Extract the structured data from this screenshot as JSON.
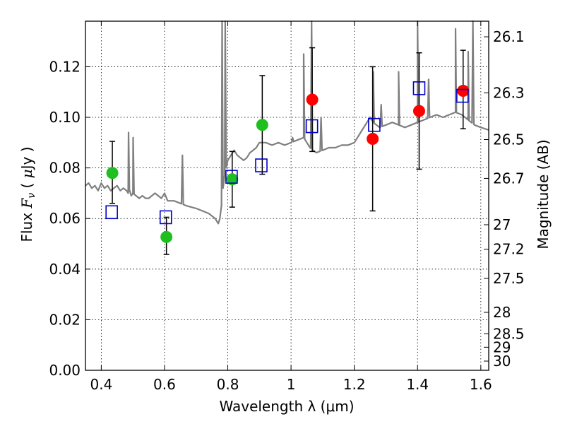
{
  "chart_data": {
    "type": "scatter",
    "xlabel": "Wavelength  λ (μm)",
    "ylabel": "Flux  F_ν  ( μJy )",
    "ylabel_parts": [
      "Flux  ",
      "F",
      "ν",
      "  ( ",
      "μ",
      "Jy )"
    ],
    "y2label": "Magnitude (AB)",
    "xlim": [
      0.35,
      1.625
    ],
    "ylim": [
      0.0,
      0.138
    ],
    "grid": true,
    "x_ticks": [
      {
        "v": 0.4,
        "label": "0.4"
      },
      {
        "v": 0.6,
        "label": "0.6"
      },
      {
        "v": 0.8,
        "label": "0.8"
      },
      {
        "v": 1.0,
        "label": "1"
      },
      {
        "v": 1.2,
        "label": "1.2"
      },
      {
        "v": 1.4,
        "label": "1.4"
      },
      {
        "v": 1.6,
        "label": "1.6"
      }
    ],
    "y_ticks": [
      {
        "v": 0.0,
        "label": "0.00"
      },
      {
        "v": 0.02,
        "label": "0.02"
      },
      {
        "v": 0.04,
        "label": "0.04"
      },
      {
        "v": 0.06,
        "label": "0.06"
      },
      {
        "v": 0.08,
        "label": "0.08"
      },
      {
        "v": 0.1,
        "label": "0.10"
      },
      {
        "v": 0.12,
        "label": "0.12"
      }
    ],
    "y2_ticks": [
      {
        "mag": 26.1,
        "label": "26.1"
      },
      {
        "mag": 26.3,
        "label": "26.3"
      },
      {
        "mag": 26.5,
        "label": "26.5"
      },
      {
        "mag": 26.7,
        "label": "26.7"
      },
      {
        "mag": 27.0,
        "label": "27"
      },
      {
        "mag": 27.2,
        "label": "27.2"
      },
      {
        "mag": 27.5,
        "label": "27.5"
      },
      {
        "mag": 28.0,
        "label": "28"
      },
      {
        "mag": 28.5,
        "label": "28.5"
      },
      {
        "mag": 29.0,
        "label": "29"
      },
      {
        "mag": 30.0,
        "label": "30"
      }
    ],
    "colors": {
      "model": "#808080",
      "green_points": "#1fbf1f",
      "red_points": "#ff0000",
      "model_boxes": "#0000cc",
      "errorbar": "#000000"
    },
    "model_spectrum": {
      "x": [
        0.35,
        0.36,
        0.37,
        0.38,
        0.39,
        0.4,
        0.41,
        0.42,
        0.43,
        0.44,
        0.45,
        0.46,
        0.47,
        0.48,
        0.485,
        0.49,
        0.495,
        0.5,
        0.51,
        0.52,
        0.53,
        0.54,
        0.55,
        0.56,
        0.57,
        0.58,
        0.59,
        0.6,
        0.61,
        0.62,
        0.63,
        0.65,
        0.67,
        0.7,
        0.72,
        0.74,
        0.75,
        0.76,
        0.77,
        0.775,
        0.78,
        0.785,
        0.79,
        0.795,
        0.8,
        0.81,
        0.82,
        0.83,
        0.84,
        0.85,
        0.86,
        0.87,
        0.88,
        0.89,
        0.9,
        0.92,
        0.94,
        0.96,
        0.98,
        1.0,
        1.02,
        1.04,
        1.05,
        1.06,
        1.07,
        1.08,
        1.1,
        1.12,
        1.14,
        1.16,
        1.18,
        1.2,
        1.22,
        1.24,
        1.25,
        1.26,
        1.27,
        1.28,
        1.3,
        1.32,
        1.34,
        1.36,
        1.38,
        1.4,
        1.42,
        1.44,
        1.46,
        1.48,
        1.5,
        1.52,
        1.54,
        1.55,
        1.56,
        1.58,
        1.6,
        1.625
      ],
      "y": [
        0.073,
        0.074,
        0.072,
        0.073,
        0.071,
        0.074,
        0.072,
        0.073,
        0.071,
        0.072,
        0.073,
        0.071,
        0.072,
        0.071,
        0.07,
        0.071,
        0.069,
        0.07,
        0.069,
        0.068,
        0.069,
        0.068,
        0.068,
        0.069,
        0.07,
        0.069,
        0.068,
        0.07,
        0.067,
        0.067,
        0.067,
        0.066,
        0.065,
        0.064,
        0.063,
        0.062,
        0.061,
        0.06,
        0.058,
        0.06,
        0.065,
        0.072,
        0.077,
        0.08,
        0.083,
        0.085,
        0.087,
        0.085,
        0.084,
        0.083,
        0.084,
        0.086,
        0.087,
        0.088,
        0.09,
        0.09,
        0.089,
        0.09,
        0.089,
        0.09,
        0.091,
        0.092,
        0.09,
        0.088,
        0.087,
        0.086,
        0.087,
        0.088,
        0.088,
        0.089,
        0.089,
        0.09,
        0.094,
        0.098,
        0.1,
        0.098,
        0.097,
        0.096,
        0.097,
        0.098,
        0.097,
        0.096,
        0.097,
        0.098,
        0.099,
        0.1,
        0.101,
        0.1,
        0.101,
        0.102,
        0.101,
        0.1,
        0.099,
        0.097,
        0.096,
        0.095
      ]
    },
    "model_emission_lines": [
      {
        "x": 0.4862,
        "peak": 0.094
      },
      {
        "x": 0.5008,
        "peak": 0.092
      },
      {
        "x": 0.6565,
        "peak": 0.085
      },
      {
        "x": 0.782,
        "peak": 0.138
      },
      {
        "x": 0.792,
        "peak": 0.138
      },
      {
        "x": 1.005,
        "peak": 0.092
      },
      {
        "x": 1.04,
        "peak": 0.125
      },
      {
        "x": 1.065,
        "peak": 0.138
      },
      {
        "x": 1.095,
        "peak": 0.1
      },
      {
        "x": 1.26,
        "peak": 0.118
      },
      {
        "x": 1.285,
        "peak": 0.105
      },
      {
        "x": 1.34,
        "peak": 0.118
      },
      {
        "x": 1.4,
        "peak": 0.138
      },
      {
        "x": 1.435,
        "peak": 0.115
      },
      {
        "x": 1.52,
        "peak": 0.135
      },
      {
        "x": 1.56,
        "peak": 0.126
      },
      {
        "x": 1.575,
        "peak": 0.138
      }
    ],
    "observed_points": [
      {
        "x": 0.435,
        "y": 0.078,
        "err_low": 0.066,
        "err_high": 0.0905,
        "color": "green"
      },
      {
        "x": 0.606,
        "y": 0.0527,
        "err_low": 0.0458,
        "err_high": 0.0605,
        "color": "green"
      },
      {
        "x": 0.814,
        "y": 0.0755,
        "err_low": 0.0645,
        "err_high": 0.0865,
        "color": "green"
      },
      {
        "x": 0.909,
        "y": 0.097,
        "err_low": 0.0775,
        "err_high": 0.1165,
        "color": "green"
      },
      {
        "x": 1.067,
        "y": 0.107,
        "err_low": 0.0865,
        "err_high": 0.1275,
        "color": "red"
      },
      {
        "x": 1.258,
        "y": 0.0915,
        "err_low": 0.063,
        "err_high": 0.12,
        "color": "red"
      },
      {
        "x": 1.405,
        "y": 0.1025,
        "err_low": 0.0795,
        "err_high": 0.1255,
        "color": "red"
      },
      {
        "x": 1.544,
        "y": 0.1105,
        "err_low": 0.0955,
        "err_high": 0.1265,
        "color": "red"
      }
    ],
    "model_photometry": [
      {
        "x": 0.433,
        "y": 0.0625
      },
      {
        "x": 0.604,
        "y": 0.0605
      },
      {
        "x": 0.812,
        "y": 0.0765
      },
      {
        "x": 0.906,
        "y": 0.081
      },
      {
        "x": 1.066,
        "y": 0.0965
      },
      {
        "x": 1.263,
        "y": 0.097
      },
      {
        "x": 1.405,
        "y": 0.1115
      },
      {
        "x": 1.542,
        "y": 0.1085
      }
    ]
  }
}
